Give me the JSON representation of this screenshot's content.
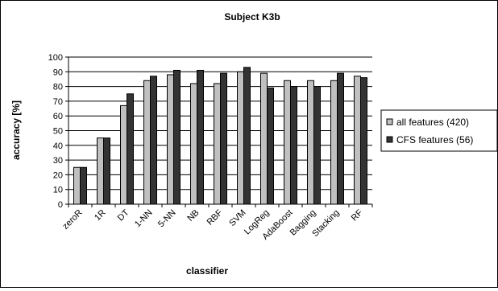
{
  "chart_data": {
    "type": "bar",
    "title": "Subject K3b",
    "xlabel": "classifier",
    "ylabel": "accuracy [%]",
    "ylim": [
      0,
      100
    ],
    "yticks": [
      0,
      10,
      20,
      30,
      40,
      50,
      60,
      70,
      80,
      90,
      100
    ],
    "grid": "horizontal",
    "legend_position": "right",
    "categories": [
      "zeroR",
      "1R",
      "DT",
      "1-NN",
      "5-NN",
      "NB",
      "RBF",
      "SVM",
      "LogReg",
      "AdaBoost",
      "Bagging",
      "Stacking",
      "RF"
    ],
    "series": [
      {
        "name": "all features (420)",
        "color": "#c0c0c0",
        "values": [
          25,
          45,
          67,
          84,
          88,
          82,
          82,
          90,
          89,
          84,
          84,
          84,
          87
        ]
      },
      {
        "name": "CFS features (56)",
        "color": "#333333",
        "values": [
          25,
          45,
          75,
          87,
          91,
          91,
          89,
          93,
          79,
          80,
          80,
          89,
          86
        ]
      }
    ]
  }
}
